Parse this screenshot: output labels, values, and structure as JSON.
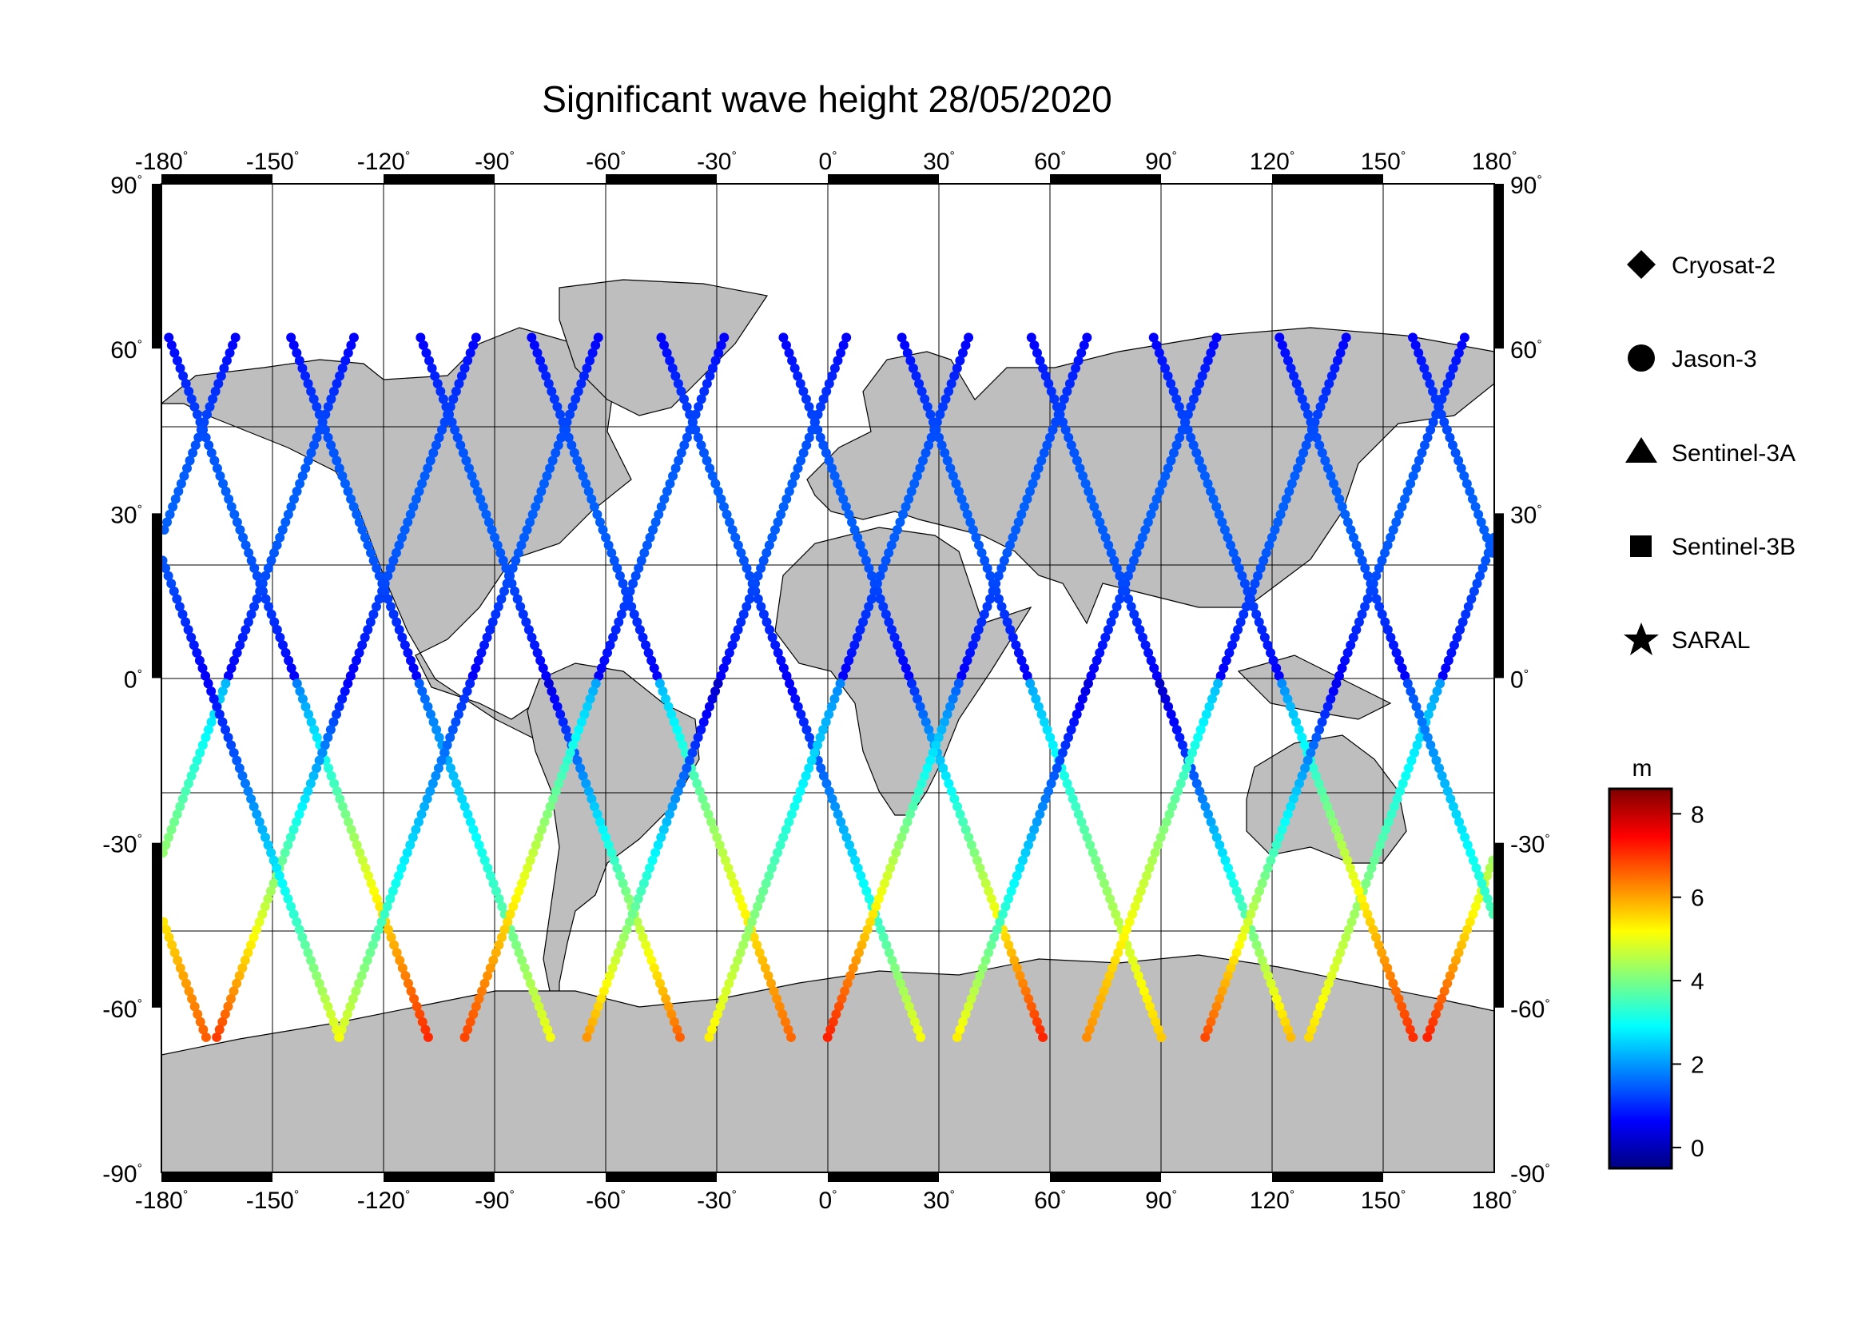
{
  "title": "Significant wave height 28/05/2020",
  "map": {
    "projection": "equirectangular",
    "lon_range": [
      -180,
      180
    ],
    "lat_range": [
      -90,
      90
    ],
    "gridlines": true,
    "lon_ticks": [
      "-180",
      "-150",
      "-120",
      "-90",
      "-60",
      "-30",
      "0",
      "30",
      "60",
      "90",
      "120",
      "150",
      "180"
    ],
    "lat_ticks": [
      "90",
      "60",
      "30",
      "0",
      "-30",
      "-60",
      "-90"
    ],
    "degree_symbol": "°",
    "land_color": "#bebebe",
    "ocean_color": "#ffffff"
  },
  "legend": {
    "placement": "right",
    "items": [
      {
        "label": "Cryosat-2",
        "symbol": "diamond"
      },
      {
        "label": "Jason-3",
        "symbol": "circle"
      },
      {
        "label": "Sentinel-3A",
        "symbol": "triangle"
      },
      {
        "label": "Sentinel-3B",
        "symbol": "square"
      },
      {
        "label": "SARAL",
        "symbol": "star"
      }
    ]
  },
  "colorbar": {
    "unit": "m",
    "min": -0.5,
    "max": 8.6,
    "ticks": [
      "8",
      "6",
      "4",
      "2",
      "0"
    ],
    "colormap": "jet"
  }
}
